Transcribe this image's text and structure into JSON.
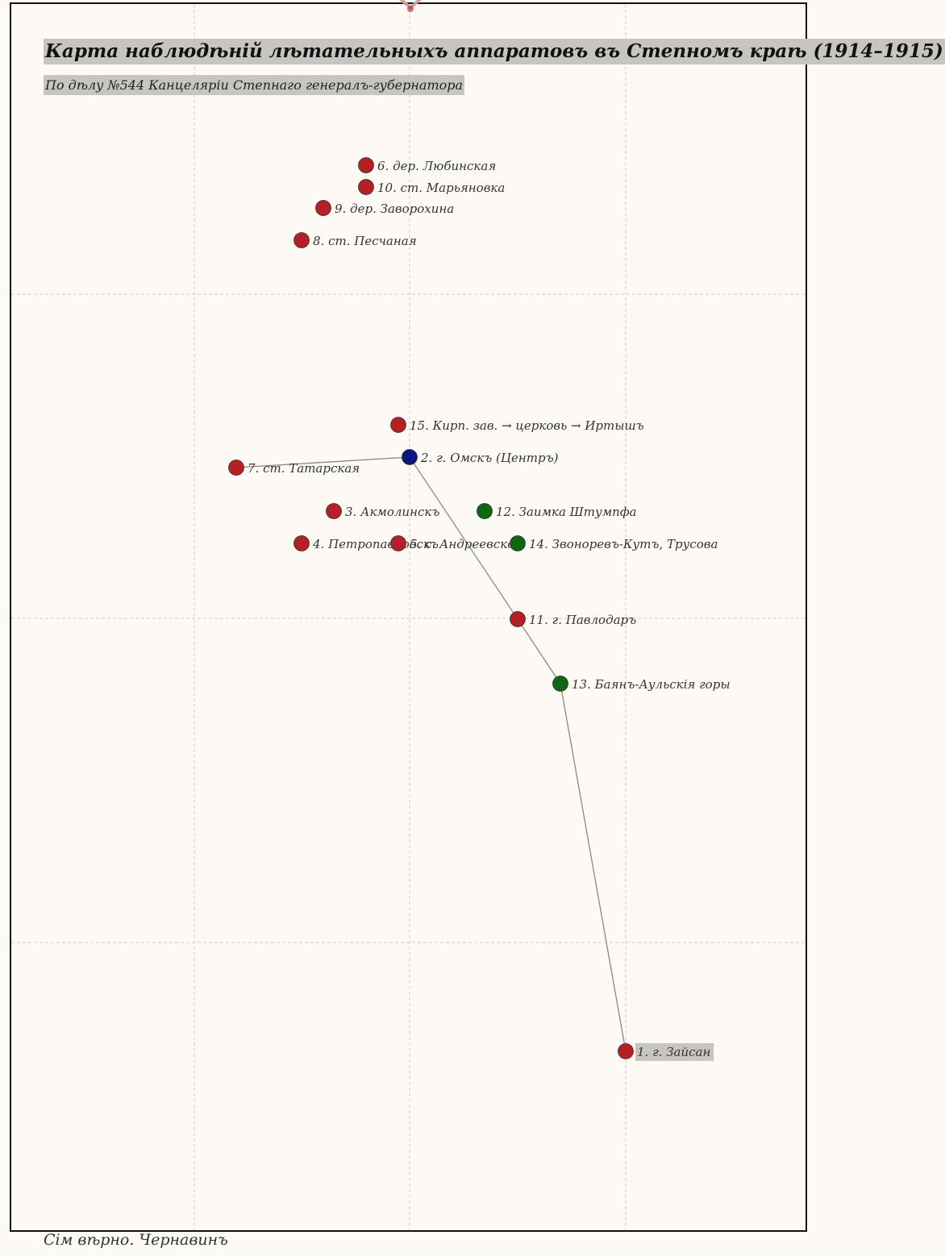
{
  "header": {
    "title": "Карта наблюдѣній лѣтательныхъ аппаратовъ въ Степномъ краѣ (1914–1915)",
    "subtitle": "По дѣлу №544 Канцеляріи Степнаго генералъ-губернатора"
  },
  "footer": {
    "signature": "Сім вѣрно. Чернавинъ"
  },
  "colors": {
    "sighting": "#b52025",
    "center": "#0b1780",
    "terrain": "#0f6614",
    "route": "#888888",
    "background": "#fdfaf5",
    "label_highlight": "#c7c5c2"
  },
  "points": [
    {
      "label": "1. г. Зайсан",
      "kind": "sighting",
      "highlight": true
    },
    {
      "label": "2. г. Омскъ (Центръ)",
      "kind": "center"
    },
    {
      "label": "3. Акмолинскъ",
      "kind": "sighting"
    },
    {
      "label": "4. Петропавловскъ",
      "kind": "sighting"
    },
    {
      "label": "5. с. Андреевское",
      "kind": "sighting"
    },
    {
      "label": "6. дер. Любинская",
      "kind": "sighting"
    },
    {
      "label": "7. ст. Татарская",
      "kind": "sighting"
    },
    {
      "label": "8. ст. Песчаная",
      "kind": "sighting"
    },
    {
      "label": "9. дер. Заворохина",
      "kind": "sighting"
    },
    {
      "label": "10. ст. Марьяновка",
      "kind": "sighting"
    },
    {
      "label": "11. г. Павлодаръ",
      "kind": "sighting"
    },
    {
      "label": "12. Заимка Штумпфа",
      "kind": "terrain"
    },
    {
      "label": "13. Баянъ-Аульскія горы",
      "kind": "terrain"
    },
    {
      "label": "14. Звоноревъ-Кутъ, Трусова",
      "kind": "terrain"
    },
    {
      "label": "15. Кирп. зав. → церковь → Иртышъ",
      "kind": "sighting"
    }
  ],
  "routes": [
    {
      "from": "1. г. Зайсан",
      "via": [
        "13. Баянъ-Аульскія горы",
        "11. г. Павлодаръ"
      ],
      "to": "2. г. Омскъ (Центръ)"
    },
    {
      "from": "2. г. Омскъ (Центръ)",
      "to": "7. ст. Татарская"
    }
  ]
}
